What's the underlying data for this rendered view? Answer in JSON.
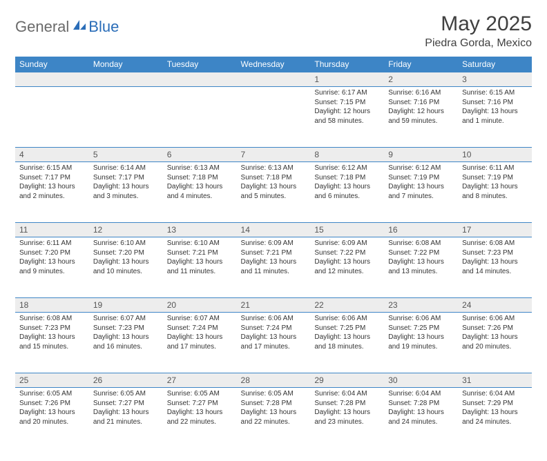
{
  "brand": {
    "part1": "General",
    "part2": "Blue"
  },
  "title": "May 2025",
  "location": "Piedra Gorda, Mexico",
  "colors": {
    "header_bg": "#3d85c6",
    "header_text": "#ffffff",
    "daynum_bg": "#ededed",
    "daynum_text": "#555555",
    "cell_text": "#333333",
    "border": "#3d85c6",
    "title_color": "#404040",
    "logo_gray": "#6a6a6a",
    "logo_blue": "#2a6db8"
  },
  "weekdays": [
    "Sunday",
    "Monday",
    "Tuesday",
    "Wednesday",
    "Thursday",
    "Friday",
    "Saturday"
  ],
  "weeks": [
    [
      null,
      null,
      null,
      null,
      {
        "n": "1",
        "r": "Sunrise: 6:17 AM",
        "s": "Sunset: 7:15 PM",
        "d1": "Daylight: 12 hours",
        "d2": "and 58 minutes."
      },
      {
        "n": "2",
        "r": "Sunrise: 6:16 AM",
        "s": "Sunset: 7:16 PM",
        "d1": "Daylight: 12 hours",
        "d2": "and 59 minutes."
      },
      {
        "n": "3",
        "r": "Sunrise: 6:15 AM",
        "s": "Sunset: 7:16 PM",
        "d1": "Daylight: 13 hours",
        "d2": "and 1 minute."
      }
    ],
    [
      {
        "n": "4",
        "r": "Sunrise: 6:15 AM",
        "s": "Sunset: 7:17 PM",
        "d1": "Daylight: 13 hours",
        "d2": "and 2 minutes."
      },
      {
        "n": "5",
        "r": "Sunrise: 6:14 AM",
        "s": "Sunset: 7:17 PM",
        "d1": "Daylight: 13 hours",
        "d2": "and 3 minutes."
      },
      {
        "n": "6",
        "r": "Sunrise: 6:13 AM",
        "s": "Sunset: 7:18 PM",
        "d1": "Daylight: 13 hours",
        "d2": "and 4 minutes."
      },
      {
        "n": "7",
        "r": "Sunrise: 6:13 AM",
        "s": "Sunset: 7:18 PM",
        "d1": "Daylight: 13 hours",
        "d2": "and 5 minutes."
      },
      {
        "n": "8",
        "r": "Sunrise: 6:12 AM",
        "s": "Sunset: 7:18 PM",
        "d1": "Daylight: 13 hours",
        "d2": "and 6 minutes."
      },
      {
        "n": "9",
        "r": "Sunrise: 6:12 AM",
        "s": "Sunset: 7:19 PM",
        "d1": "Daylight: 13 hours",
        "d2": "and 7 minutes."
      },
      {
        "n": "10",
        "r": "Sunrise: 6:11 AM",
        "s": "Sunset: 7:19 PM",
        "d1": "Daylight: 13 hours",
        "d2": "and 8 minutes."
      }
    ],
    [
      {
        "n": "11",
        "r": "Sunrise: 6:11 AM",
        "s": "Sunset: 7:20 PM",
        "d1": "Daylight: 13 hours",
        "d2": "and 9 minutes."
      },
      {
        "n": "12",
        "r": "Sunrise: 6:10 AM",
        "s": "Sunset: 7:20 PM",
        "d1": "Daylight: 13 hours",
        "d2": "and 10 minutes."
      },
      {
        "n": "13",
        "r": "Sunrise: 6:10 AM",
        "s": "Sunset: 7:21 PM",
        "d1": "Daylight: 13 hours",
        "d2": "and 11 minutes."
      },
      {
        "n": "14",
        "r": "Sunrise: 6:09 AM",
        "s": "Sunset: 7:21 PM",
        "d1": "Daylight: 13 hours",
        "d2": "and 11 minutes."
      },
      {
        "n": "15",
        "r": "Sunrise: 6:09 AM",
        "s": "Sunset: 7:22 PM",
        "d1": "Daylight: 13 hours",
        "d2": "and 12 minutes."
      },
      {
        "n": "16",
        "r": "Sunrise: 6:08 AM",
        "s": "Sunset: 7:22 PM",
        "d1": "Daylight: 13 hours",
        "d2": "and 13 minutes."
      },
      {
        "n": "17",
        "r": "Sunrise: 6:08 AM",
        "s": "Sunset: 7:23 PM",
        "d1": "Daylight: 13 hours",
        "d2": "and 14 minutes."
      }
    ],
    [
      {
        "n": "18",
        "r": "Sunrise: 6:08 AM",
        "s": "Sunset: 7:23 PM",
        "d1": "Daylight: 13 hours",
        "d2": "and 15 minutes."
      },
      {
        "n": "19",
        "r": "Sunrise: 6:07 AM",
        "s": "Sunset: 7:23 PM",
        "d1": "Daylight: 13 hours",
        "d2": "and 16 minutes."
      },
      {
        "n": "20",
        "r": "Sunrise: 6:07 AM",
        "s": "Sunset: 7:24 PM",
        "d1": "Daylight: 13 hours",
        "d2": "and 17 minutes."
      },
      {
        "n": "21",
        "r": "Sunrise: 6:06 AM",
        "s": "Sunset: 7:24 PM",
        "d1": "Daylight: 13 hours",
        "d2": "and 17 minutes."
      },
      {
        "n": "22",
        "r": "Sunrise: 6:06 AM",
        "s": "Sunset: 7:25 PM",
        "d1": "Daylight: 13 hours",
        "d2": "and 18 minutes."
      },
      {
        "n": "23",
        "r": "Sunrise: 6:06 AM",
        "s": "Sunset: 7:25 PM",
        "d1": "Daylight: 13 hours",
        "d2": "and 19 minutes."
      },
      {
        "n": "24",
        "r": "Sunrise: 6:06 AM",
        "s": "Sunset: 7:26 PM",
        "d1": "Daylight: 13 hours",
        "d2": "and 20 minutes."
      }
    ],
    [
      {
        "n": "25",
        "r": "Sunrise: 6:05 AM",
        "s": "Sunset: 7:26 PM",
        "d1": "Daylight: 13 hours",
        "d2": "and 20 minutes."
      },
      {
        "n": "26",
        "r": "Sunrise: 6:05 AM",
        "s": "Sunset: 7:27 PM",
        "d1": "Daylight: 13 hours",
        "d2": "and 21 minutes."
      },
      {
        "n": "27",
        "r": "Sunrise: 6:05 AM",
        "s": "Sunset: 7:27 PM",
        "d1": "Daylight: 13 hours",
        "d2": "and 22 minutes."
      },
      {
        "n": "28",
        "r": "Sunrise: 6:05 AM",
        "s": "Sunset: 7:28 PM",
        "d1": "Daylight: 13 hours",
        "d2": "and 22 minutes."
      },
      {
        "n": "29",
        "r": "Sunrise: 6:04 AM",
        "s": "Sunset: 7:28 PM",
        "d1": "Daylight: 13 hours",
        "d2": "and 23 minutes."
      },
      {
        "n": "30",
        "r": "Sunrise: 6:04 AM",
        "s": "Sunset: 7:28 PM",
        "d1": "Daylight: 13 hours",
        "d2": "and 24 minutes."
      },
      {
        "n": "31",
        "r": "Sunrise: 6:04 AM",
        "s": "Sunset: 7:29 PM",
        "d1": "Daylight: 13 hours",
        "d2": "and 24 minutes."
      }
    ]
  ]
}
